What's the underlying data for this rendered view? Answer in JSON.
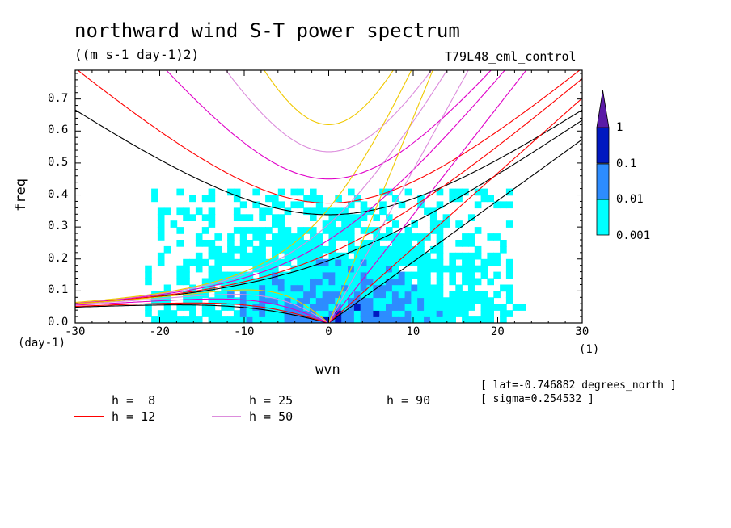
{
  "chart_data": {
    "type": "contour",
    "title": "northward wind S-T power spectrum",
    "units": "((m s-1 day-1)2)",
    "case": "T79L48_eml_control",
    "xlabel": "wvn",
    "xunit": "(1)",
    "ylabel": "freq",
    "yunit": "(day-1)",
    "xlim": [
      -30,
      30
    ],
    "ylim": [
      0,
      0.79
    ],
    "xticks": [
      -30,
      -20,
      -10,
      0,
      10,
      20,
      30
    ],
    "yticks": [
      0,
      0.1,
      0.2,
      0.3,
      0.4,
      0.5,
      0.6,
      0.7
    ],
    "xtick_labels": [
      "-30",
      "-20",
      "-10",
      "0",
      "10",
      "20",
      "30"
    ],
    "ytick_labels": [
      "0.0",
      "0.1",
      "0.2",
      "0.3",
      "0.4",
      "0.5",
      "0.6",
      "0.7"
    ],
    "contour_levels": [
      "0.001",
      "0.01",
      "0.1",
      "1"
    ],
    "level_colors": [
      "#00ffff",
      "#2d8cff",
      "#0018c0",
      "#5a1aa6"
    ],
    "dispersion_curves": [
      {
        "label": "h =  8",
        "h": 8,
        "color": "#000000"
      },
      {
        "label": "h = 12",
        "h": 12,
        "color": "#ff0000"
      },
      {
        "label": "h = 25",
        "h": 25,
        "color": "#e000c8"
      },
      {
        "label": "h = 50",
        "h": 50,
        "color": "#dc8cdc"
      },
      {
        "label": "h = 90",
        "h": 90,
        "color": "#f0c800"
      }
    ],
    "annotations": [
      "[ lat=-0.746882 degrees_north ]",
      "[ sigma=0.254532 ]"
    ]
  }
}
